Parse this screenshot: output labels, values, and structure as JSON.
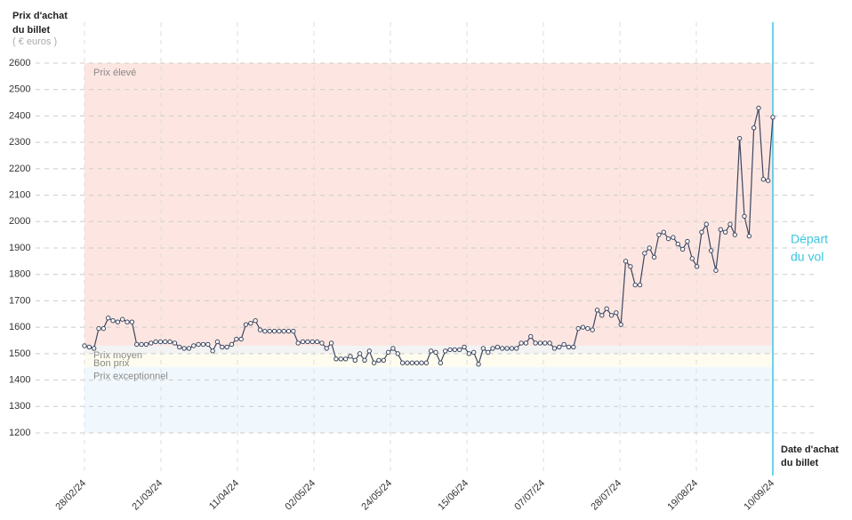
{
  "chart_data": {
    "type": "line",
    "y_axis_label": [
      "Prix d'achat",
      "du billet"
    ],
    "y_axis_unit": "( € euros )",
    "x_axis_label": [
      "Date d'achat",
      "du billet"
    ],
    "departure_label": [
      "Départ",
      "du vol"
    ],
    "x_labels": [
      "28/02/24",
      "21/03/24",
      "11/04/24",
      "02/05/24",
      "24/05/24",
      "15/06/24",
      "07/07/24",
      "28/07/24",
      "19/08/24",
      "10/09/24"
    ],
    "ylim": [
      1200,
      2600
    ],
    "yticks": [
      1200,
      1300,
      1400,
      1500,
      1600,
      1700,
      1800,
      1900,
      2000,
      2100,
      2200,
      2300,
      2400,
      2500,
      2600
    ],
    "grid": true,
    "color": "#3d4660",
    "departure_color": "#3cc6e0",
    "bands": [
      {
        "label": "Prix élevé",
        "from": 1530,
        "to": 2600,
        "color": "#fde6e1"
      },
      {
        "label": "Prix moyen",
        "from": 1500,
        "to": 1530,
        "color": "#f3f3f3"
      },
      {
        "label": "Bon prix",
        "from": 1450,
        "to": 1500,
        "color": "#fdfcee"
      },
      {
        "label": "Prix exceptionnel",
        "from": 1200,
        "to": 1450,
        "color": "#f1f8fd"
      }
    ],
    "values": [
      1530,
      1525,
      1520,
      1595,
      1595,
      1635,
      1625,
      1620,
      1630,
      1620,
      1620,
      1535,
      1535,
      1535,
      1540,
      1545,
      1545,
      1545,
      1545,
      1540,
      1525,
      1520,
      1520,
      1530,
      1535,
      1535,
      1535,
      1510,
      1545,
      1525,
      1525,
      1535,
      1555,
      1555,
      1610,
      1615,
      1625,
      1590,
      1585,
      1585,
      1585,
      1585,
      1585,
      1585,
      1585,
      1540,
      1545,
      1545,
      1545,
      1545,
      1540,
      1520,
      1540,
      1480,
      1480,
      1480,
      1490,
      1475,
      1500,
      1475,
      1510,
      1465,
      1475,
      1475,
      1505,
      1520,
      1500,
      1465,
      1465,
      1465,
      1465,
      1465,
      1465,
      1510,
      1505,
      1465,
      1510,
      1515,
      1515,
      1515,
      1525,
      1500,
      1505,
      1460,
      1520,
      1505,
      1520,
      1525,
      1520,
      1520,
      1520,
      1520,
      1540,
      1540,
      1565,
      1540,
      1540,
      1540,
      1540,
      1520,
      1525,
      1535,
      1525,
      1525,
      1595,
      1600,
      1595,
      1590,
      1665,
      1645,
      1670,
      1645,
      1655,
      1610,
      1850,
      1830,
      1760,
      1760,
      1880,
      1900,
      1865,
      1950,
      1960,
      1935,
      1940,
      1915,
      1895,
      1925,
      1860,
      1830,
      1960,
      1990,
      1890,
      1815,
      1970,
      1960,
      1990,
      1950,
      2315,
      2020,
      1945,
      2355,
      2430,
      2160,
      2155,
      2395
    ]
  }
}
